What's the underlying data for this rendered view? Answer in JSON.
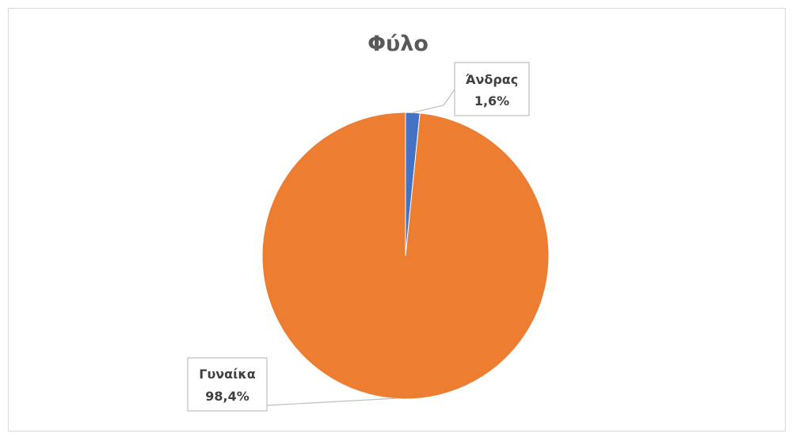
{
  "chart_data": {
    "type": "pie",
    "title": "Φύλο",
    "categories": [
      "Άνδρας",
      "Γυναίκα"
    ],
    "values": [
      1.6,
      98.4
    ],
    "value_labels": [
      "1,6%",
      "98,4%"
    ],
    "colors": [
      "#4472C4",
      "#ED7D31"
    ],
    "legend": "none"
  }
}
